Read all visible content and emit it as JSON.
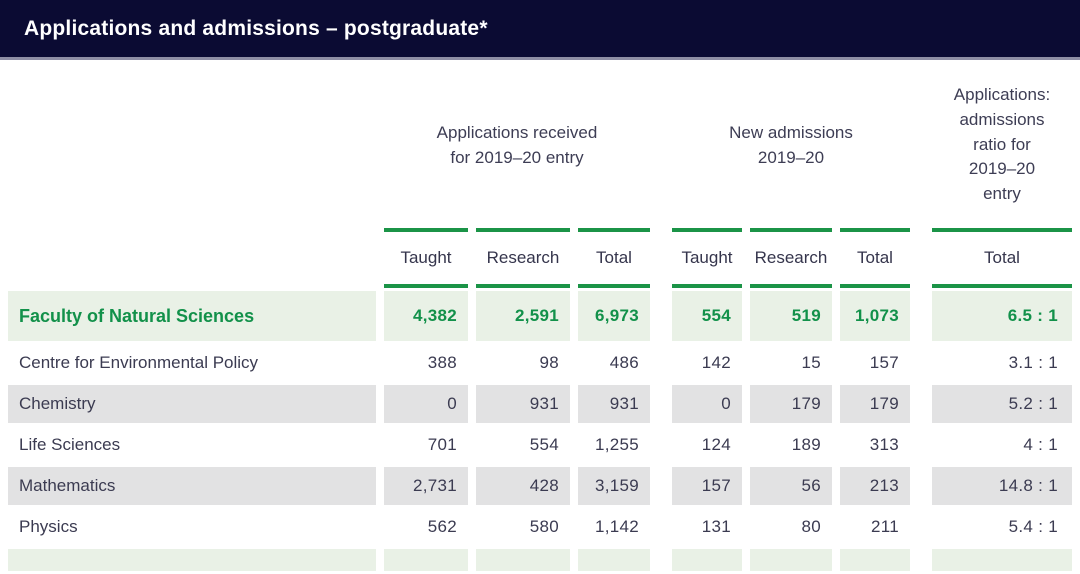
{
  "title_bar": {
    "title": "Applications and admissions – postgraduate*"
  },
  "table": {
    "groups": [
      {
        "label": "Applications received\nfor 2019–20 entry",
        "span": 3
      },
      {
        "label": "New admissions\n2019–20",
        "span": 3
      },
      {
        "label": "Applications:\nadmissions\nratio for\n2019–20\nentry",
        "span": 1
      }
    ],
    "subheaders": [
      "Taught",
      "Research",
      "Total",
      "Taught",
      "Research",
      "Total",
      "Total"
    ],
    "rows": [
      {
        "label": "Faculty of Natural Sciences",
        "highlight": true,
        "values": [
          "4,382",
          "2,591",
          "6,973",
          "554",
          "519",
          "1,073",
          "6.5 : 1"
        ]
      },
      {
        "label": "Centre for Environmental Policy",
        "highlight": false,
        "values": [
          "388",
          "98",
          "486",
          "142",
          "15",
          "157",
          "3.1 : 1"
        ]
      },
      {
        "label": "Chemistry",
        "highlight": false,
        "values": [
          "0",
          "931",
          "931",
          "0",
          "179",
          "179",
          "5.2 : 1"
        ]
      },
      {
        "label": "Life Sciences",
        "highlight": false,
        "values": [
          "701",
          "554",
          "1,255",
          "124",
          "189",
          "313",
          "4 : 1"
        ]
      },
      {
        "label": "Mathematics",
        "highlight": false,
        "values": [
          "2,731",
          "428",
          "3,159",
          "157",
          "56",
          "213",
          "14.8 : 1"
        ]
      },
      {
        "label": "Physics",
        "highlight": false,
        "values": [
          "562",
          "580",
          "1,142",
          "131",
          "80",
          "211",
          "5.4 : 1"
        ]
      }
    ],
    "colors": {
      "header_navy": "#0b0b33",
      "header_underline_grey": "#8f8fa5",
      "accent_green_line": "#1b9447",
      "accent_green_text": "#12914a",
      "highlight_row_bg": "#e9f1e6",
      "stripe_row_bg": "#e2e2e3",
      "body_text": "#3b3b51"
    }
  }
}
